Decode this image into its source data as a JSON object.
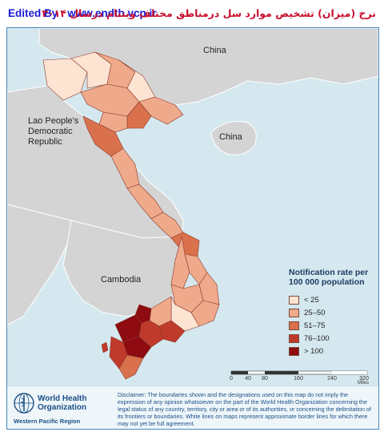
{
  "header": {
    "edited_by": "Edited By : www.endtb.vcp.ir",
    "persian_title": "نرخ (میزان) تشخیص موارد سل  درمناطق مختلف ویتنام درسال ۲۰۱۴"
  },
  "map": {
    "country_labels": {
      "china_north": "China",
      "china_hainan": "China",
      "lao": [
        "Lao People's",
        "Democratic",
        "Republic"
      ],
      "cambodia": "Cambodia"
    },
    "colors": {
      "sea": "#d5e8ef",
      "neighbor_land": "#d4d4d4",
      "border": "#ffffff",
      "province_border": "#8a3a2a"
    }
  },
  "legend": {
    "title": [
      "Notification rate per",
      "100 000 population"
    ],
    "items": [
      {
        "label": "< 25",
        "color": "#fde3d2"
      },
      {
        "label": "25–50",
        "color": "#efa98b"
      },
      {
        "label": "51–75",
        "color": "#d9714d"
      },
      {
        "label": "76–100",
        "color": "#c03a2b"
      },
      {
        "label": "> 100",
        "color": "#8e0b12"
      }
    ]
  },
  "scale": {
    "ticks": [
      "0",
      "40",
      "80",
      "160",
      "240",
      "320"
    ],
    "unit": "Miles"
  },
  "footer": {
    "org_name": [
      "World Health",
      "Organization"
    ],
    "region": "Western Pacific Region",
    "disclaimer": "Disclaimer: The boundaries shown and the designations used on this map do not imply the expression of any opinion whatsoever on the part of the World Health Organization concerning the legal status of any country, territory, city or area or of its authorities, or concerning the delimitation of its frontiers or boundaries. White lines on maps represent approximate border lines for which there may not yet be full agreement."
  }
}
